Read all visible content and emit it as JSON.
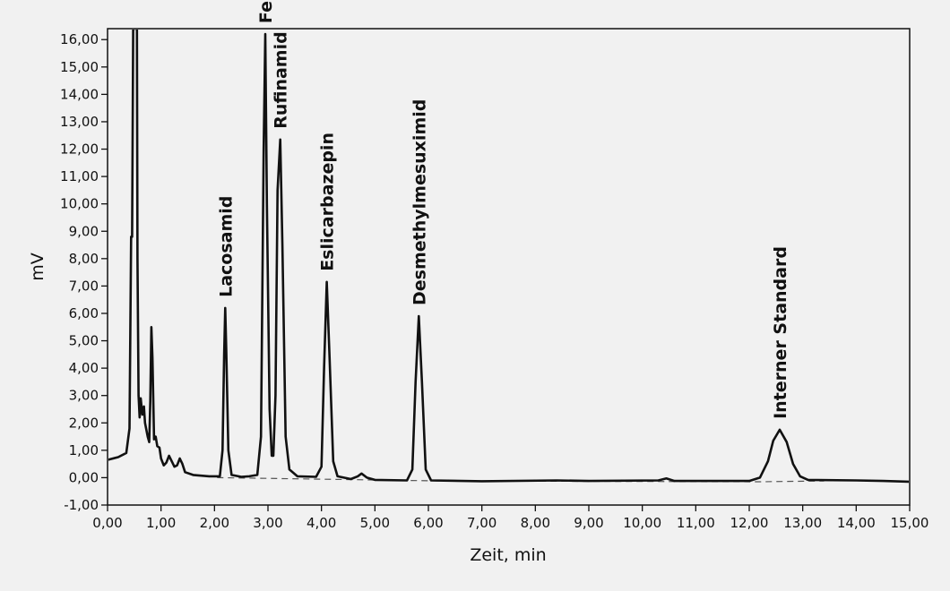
{
  "chart_data": {
    "type": "line",
    "xlabel": "Zeit, min",
    "ylabel": "mV",
    "xlim": [
      0,
      15
    ],
    "ylim": [
      -1,
      16.4
    ],
    "x_ticks": [
      "0,00",
      "1,00",
      "2,00",
      "3,00",
      "4,00",
      "5,00",
      "6,00",
      "7,00",
      "8,00",
      "9,00",
      "10,00",
      "11,00",
      "12,00",
      "13,00",
      "14,00",
      "15,00"
    ],
    "y_ticks": [
      "-1,00",
      "0,00",
      "1,00",
      "2,00",
      "3,00",
      "4,00",
      "5,00",
      "6,00",
      "7,00",
      "8,00",
      "9,00",
      "10,00",
      "11,00",
      "12,00",
      "13,00",
      "14,00",
      "15,00",
      "16,00"
    ],
    "grid": false,
    "legend": "none",
    "line_color": "#111111",
    "baseline_color": "#555555",
    "baseline_points": [
      [
        2.05,
        0.0
      ],
      [
        6.25,
        -0.12
      ],
      [
        12.2,
        -0.15
      ],
      [
        13.4,
        -0.12
      ]
    ],
    "peaks": [
      {
        "label": "Lacosamid",
        "x": 2.2,
        "y": 6.2
      },
      {
        "label": "Felbamat",
        "x": 2.95,
        "y": 16.2
      },
      {
        "label": "Rufinamid",
        "x": 3.23,
        "y": 12.35
      },
      {
        "label": "Eslicarbazepin",
        "x": 4.1,
        "y": 7.15
      },
      {
        "label": "Desmethylmesuximid",
        "x": 5.82,
        "y": 5.9
      },
      {
        "label": "Interner Standard",
        "x": 12.57,
        "y": 1.75
      }
    ],
    "trace": [
      [
        0.0,
        0.65
      ],
      [
        0.2,
        0.75
      ],
      [
        0.35,
        0.9
      ],
      [
        0.41,
        1.8
      ],
      [
        0.44,
        8.8
      ],
      [
        0.46,
        8.8
      ],
      [
        0.48,
        16.4
      ],
      [
        0.53,
        16.4
      ],
      [
        0.55,
        16.4
      ],
      [
        0.56,
        8.0
      ],
      [
        0.58,
        3.0
      ],
      [
        0.6,
        2.2
      ],
      [
        0.62,
        2.9
      ],
      [
        0.65,
        2.3
      ],
      [
        0.68,
        2.6
      ],
      [
        0.7,
        2.0
      ],
      [
        0.75,
        1.5
      ],
      [
        0.78,
        1.3
      ],
      [
        0.8,
        2.8
      ],
      [
        0.82,
        5.5
      ],
      [
        0.84,
        4.4
      ],
      [
        0.87,
        1.4
      ],
      [
        0.9,
        1.5
      ],
      [
        0.93,
        1.15
      ],
      [
        0.97,
        1.1
      ],
      [
        1.0,
        0.7
      ],
      [
        1.05,
        0.45
      ],
      [
        1.1,
        0.55
      ],
      [
        1.15,
        0.8
      ],
      [
        1.2,
        0.6
      ],
      [
        1.25,
        0.4
      ],
      [
        1.3,
        0.45
      ],
      [
        1.35,
        0.7
      ],
      [
        1.4,
        0.5
      ],
      [
        1.45,
        0.2
      ],
      [
        1.6,
        0.1
      ],
      [
        1.9,
        0.05
      ],
      [
        2.1,
        0.05
      ],
      [
        2.15,
        1.0
      ],
      [
        2.18,
        4.5
      ],
      [
        2.2,
        6.2
      ],
      [
        2.22,
        4.6
      ],
      [
        2.26,
        1.0
      ],
      [
        2.32,
        0.1
      ],
      [
        2.5,
        0.03
      ],
      [
        2.65,
        0.05
      ],
      [
        2.8,
        0.1
      ],
      [
        2.87,
        1.5
      ],
      [
        2.92,
        12.0
      ],
      [
        2.95,
        16.2
      ],
      [
        2.98,
        10.0
      ],
      [
        3.03,
        2.5
      ],
      [
        3.07,
        0.8
      ],
      [
        3.1,
        0.8
      ],
      [
        3.14,
        3.0
      ],
      [
        3.18,
        10.5
      ],
      [
        3.23,
        12.35
      ],
      [
        3.27,
        8.5
      ],
      [
        3.33,
        1.5
      ],
      [
        3.4,
        0.3
      ],
      [
        3.55,
        0.05
      ],
      [
        3.9,
        0.03
      ],
      [
        4.0,
        0.4
      ],
      [
        4.05,
        4.0
      ],
      [
        4.1,
        7.15
      ],
      [
        4.15,
        4.5
      ],
      [
        4.22,
        0.6
      ],
      [
        4.3,
        0.05
      ],
      [
        4.55,
        -0.05
      ],
      [
        4.68,
        0.05
      ],
      [
        4.75,
        0.15
      ],
      [
        4.85,
        0.0
      ],
      [
        5.0,
        -0.08
      ],
      [
        5.6,
        -0.1
      ],
      [
        5.7,
        0.3
      ],
      [
        5.76,
        3.5
      ],
      [
        5.82,
        5.9
      ],
      [
        5.88,
        3.5
      ],
      [
        5.95,
        0.3
      ],
      [
        6.05,
        -0.1
      ],
      [
        7.0,
        -0.13
      ],
      [
        8.4,
        -0.1
      ],
      [
        9.0,
        -0.12
      ],
      [
        10.3,
        -0.1
      ],
      [
        10.45,
        -0.03
      ],
      [
        10.6,
        -0.12
      ],
      [
        12.0,
        -0.12
      ],
      [
        12.2,
        0.0
      ],
      [
        12.35,
        0.6
      ],
      [
        12.45,
        1.35
      ],
      [
        12.57,
        1.75
      ],
      [
        12.7,
        1.3
      ],
      [
        12.82,
        0.5
      ],
      [
        12.95,
        0.05
      ],
      [
        13.1,
        -0.08
      ],
      [
        14.0,
        -0.1
      ],
      [
        14.5,
        -0.12
      ],
      [
        15.0,
        -0.15
      ]
    ]
  }
}
